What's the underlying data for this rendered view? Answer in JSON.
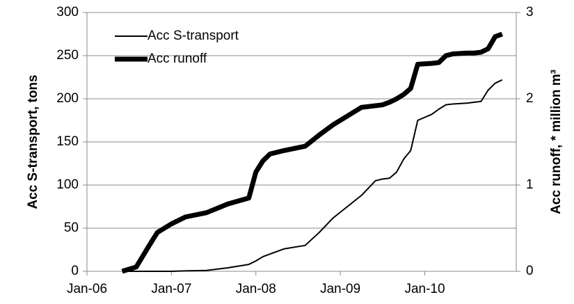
{
  "chart_data": {
    "type": "line",
    "x": [
      "2006-06",
      "2006-08",
      "2006-10",
      "2006-11",
      "2007-01",
      "2007-03",
      "2007-06",
      "2007-09",
      "2007-12",
      "2008-01",
      "2008-02",
      "2008-03",
      "2008-05",
      "2008-08",
      "2008-10",
      "2008-12",
      "2009-02",
      "2009-04",
      "2009-06",
      "2009-07",
      "2009-08",
      "2009-09",
      "2009-10",
      "2009-11",
      "2009-12",
      "2010-02",
      "2010-03",
      "2010-04",
      "2010-05",
      "2010-07",
      "2010-08",
      "2010-09",
      "2010-10",
      "2010-11",
      "2010-12"
    ],
    "series": [
      {
        "name": "Acc S-transport",
        "color": "#000000",
        "axis": "y",
        "values": [
          0,
          0,
          0,
          0,
          0,
          0.5,
          1,
          4,
          8,
          12,
          17,
          20,
          26,
          30,
          45,
          62,
          75,
          88,
          105,
          107,
          108,
          115,
          130,
          140,
          175,
          182,
          188,
          193,
          194,
          195,
          196,
          197,
          210,
          218,
          222
        ]
      },
      {
        "name": "Acc runoff",
        "color": "#000000",
        "axis": "y2",
        "values": [
          0,
          0.05,
          0.32,
          0.45,
          0.55,
          0.63,
          0.68,
          0.78,
          0.85,
          1.15,
          1.28,
          1.36,
          1.4,
          1.45,
          1.58,
          1.7,
          1.8,
          1.9,
          1.92,
          1.93,
          1.96,
          2.0,
          2.05,
          2.12,
          2.4,
          2.41,
          2.42,
          2.5,
          2.52,
          2.53,
          2.53,
          2.54,
          2.58,
          2.72,
          2.75
        ]
      }
    ],
    "y_label": "Acc S-transport, tons",
    "y2_label": "Acc runoff, * million m³",
    "xlim": [
      "2006-01",
      "2011-02"
    ],
    "xticks": [
      {
        "value": "2006-01",
        "label": "Jan-06"
      },
      {
        "value": "2007-01",
        "label": "Jan-07"
      },
      {
        "value": "2008-01",
        "label": "Jan-08"
      },
      {
        "value": "2009-01",
        "label": "Jan-09"
      },
      {
        "value": "2010-01",
        "label": "Jan-10"
      }
    ],
    "ylim": [
      0,
      300
    ],
    "yticks": [
      0,
      50,
      100,
      150,
      200,
      250,
      300
    ],
    "y2lim": [
      0,
      3
    ],
    "y2ticks": [
      0,
      1,
      2,
      3
    ],
    "grid": true,
    "legend": "upper left"
  }
}
